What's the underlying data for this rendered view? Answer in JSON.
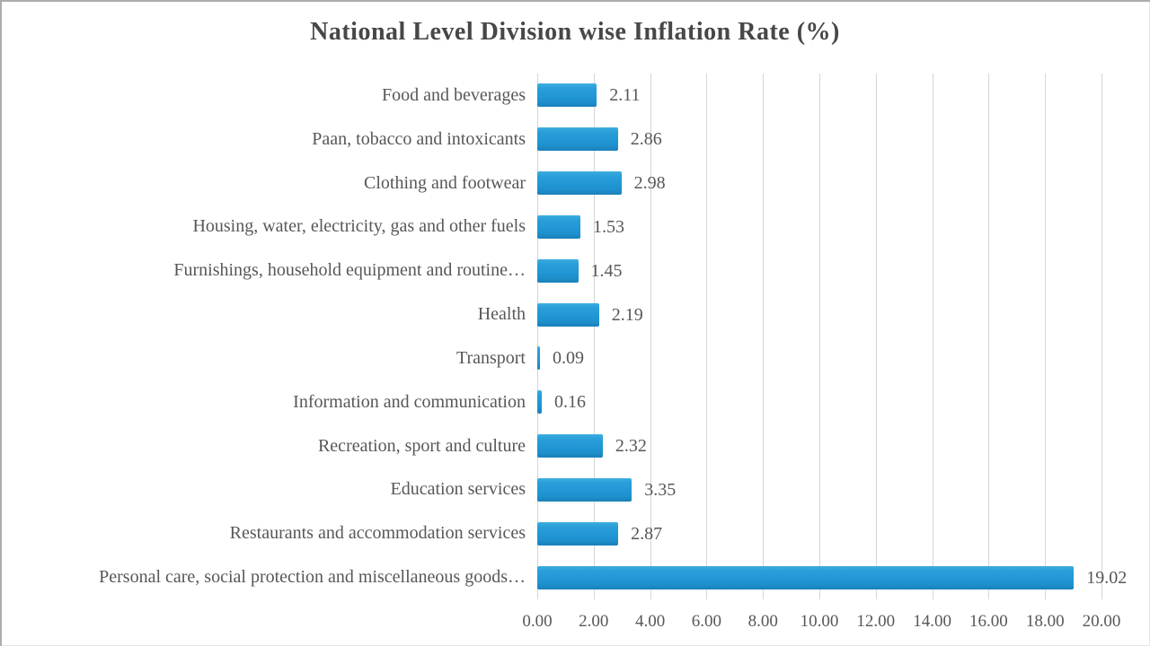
{
  "chart_data": {
    "type": "bar",
    "orientation": "horizontal",
    "title": "National Level Division wise Inflation Rate (%)",
    "categories": [
      "Food and beverages",
      "Paan, tobacco and intoxicants",
      "Clothing and footwear",
      "Housing, water, electricity, gas and other fuels",
      "Furnishings, household equipment and routine…",
      "Health",
      "Transport",
      "Information and communication",
      "Recreation, sport and culture",
      "Education services",
      "Restaurants and accommodation services",
      "Personal care, social protection and miscellaneous goods…"
    ],
    "values": [
      2.11,
      2.86,
      2.98,
      1.53,
      1.45,
      2.19,
      0.09,
      0.16,
      2.32,
      3.35,
      2.87,
      19.02
    ],
    "value_labels": [
      "2.11",
      "2.86",
      "2.98",
      "1.53",
      "1.45",
      "2.19",
      "0.09",
      "0.16",
      "2.32",
      "3.35",
      "2.87",
      "19.02"
    ],
    "xlabel": "",
    "ylabel": "",
    "xlim": [
      0,
      20
    ],
    "x_tick_values": [
      0,
      2,
      4,
      6,
      8,
      10,
      12,
      14,
      16,
      18,
      20
    ],
    "x_tick_labels": [
      "0.00",
      "2.00",
      "4.00",
      "6.00",
      "8.00",
      "10.00",
      "12.00",
      "14.00",
      "16.00",
      "18.00",
      "20.00"
    ],
    "grid": "vertical-gridlines-on",
    "legend": "none",
    "colors": {
      "bar": "#2097d5",
      "gridline": "#d6d6d6",
      "text": "#575757",
      "title_text": "#474747",
      "background": "#ffffff"
    }
  }
}
